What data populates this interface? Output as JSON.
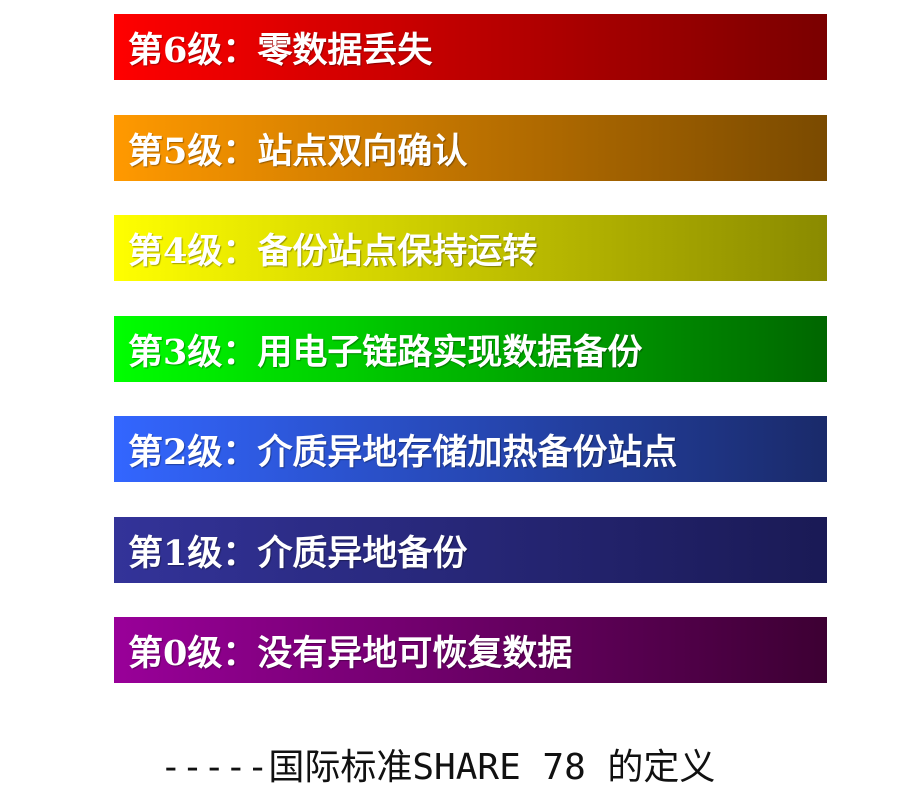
{
  "levels": [
    {
      "label": "第6级：零数据丢失",
      "color_start": "#ff0000",
      "color_end": "#7a0000"
    },
    {
      "label": "第5级：站点双向确认",
      "color_start": "#ff9900",
      "color_end": "#7a4a00"
    },
    {
      "label": "第4级：备份站点保持运转",
      "color_start": "#ffff00",
      "color_end": "#8a8a00"
    },
    {
      "label": "第3级：用电子链路实现数据备份",
      "color_start": "#00ff00",
      "color_end": "#006600"
    },
    {
      "label": "第2级：介质异地存储加热备份站点",
      "color_start": "#3366ff",
      "color_end": "#1a2a6a"
    },
    {
      "label": "第1级：介质异地备份",
      "color_start": "#333399",
      "color_end": "#1a1a55"
    },
    {
      "label": "第0级：没有异地可恢复数据",
      "color_start": "#990099",
      "color_end": "#3d0033"
    }
  ],
  "caption": "-----国际标准SHARE 78 的定义"
}
